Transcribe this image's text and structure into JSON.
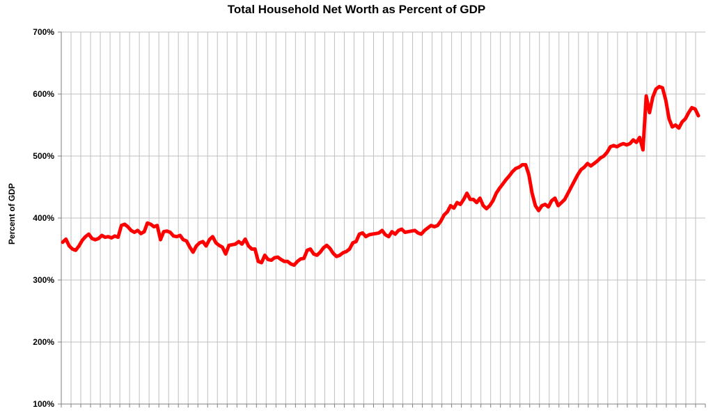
{
  "chart_data": {
    "type": "line",
    "title": "Total Household Net Worth as Percent of GDP",
    "xlabel": "",
    "ylabel": "Percent of GDP",
    "ylim": [
      100,
      700
    ],
    "yticks": [
      "100%",
      "200%",
      "300%",
      "400%",
      "500%",
      "600%",
      "700%"
    ],
    "grid": true,
    "legend": "none",
    "colors": {
      "line": "#ff0000",
      "grid": "#bfbfbf",
      "axis": "#7f7f7f"
    },
    "series": [
      {
        "values": [
          361,
          366,
          355,
          350,
          348,
          355,
          364,
          370,
          374,
          367,
          365,
          367,
          372,
          369,
          370,
          368,
          371,
          369,
          388,
          390,
          386,
          380,
          377,
          380,
          375,
          378,
          392,
          390,
          386,
          388,
          365,
          378,
          379,
          377,
          371,
          370,
          372,
          365,
          363,
          353,
          345,
          355,
          360,
          362,
          355,
          365,
          370,
          360,
          356,
          353,
          342,
          356,
          357,
          358,
          362,
          358,
          366,
          355,
          350,
          350,
          330,
          328,
          340,
          333,
          332,
          336,
          337,
          333,
          330,
          330,
          326,
          324,
          330,
          334,
          335,
          348,
          350,
          342,
          340,
          345,
          352,
          356,
          351,
          343,
          338,
          340,
          344,
          346,
          350,
          360,
          362,
          374,
          376,
          370,
          373,
          374,
          375,
          376,
          380,
          373,
          370,
          378,
          374,
          380,
          382,
          377,
          378,
          379,
          380,
          376,
          374,
          380,
          384,
          388,
          386,
          388,
          395,
          405,
          410,
          420,
          416,
          425,
          422,
          430,
          440,
          430,
          430,
          425,
          432,
          420,
          415,
          420,
          428,
          440,
          448,
          455,
          462,
          468,
          475,
          480,
          482,
          486,
          486,
          470,
          440,
          420,
          412,
          420,
          422,
          418,
          428,
          432,
          420,
          425,
          430,
          440,
          450,
          460,
          470,
          478,
          482,
          488,
          484,
          488,
          492,
          497,
          500,
          506,
          515,
          517,
          515,
          518,
          520,
          518,
          520,
          526,
          522,
          530,
          510,
          597,
          570,
          595,
          608,
          612,
          610,
          590,
          560,
          547,
          550,
          545,
          555,
          560,
          570,
          578,
          576,
          565
        ]
      }
    ]
  }
}
